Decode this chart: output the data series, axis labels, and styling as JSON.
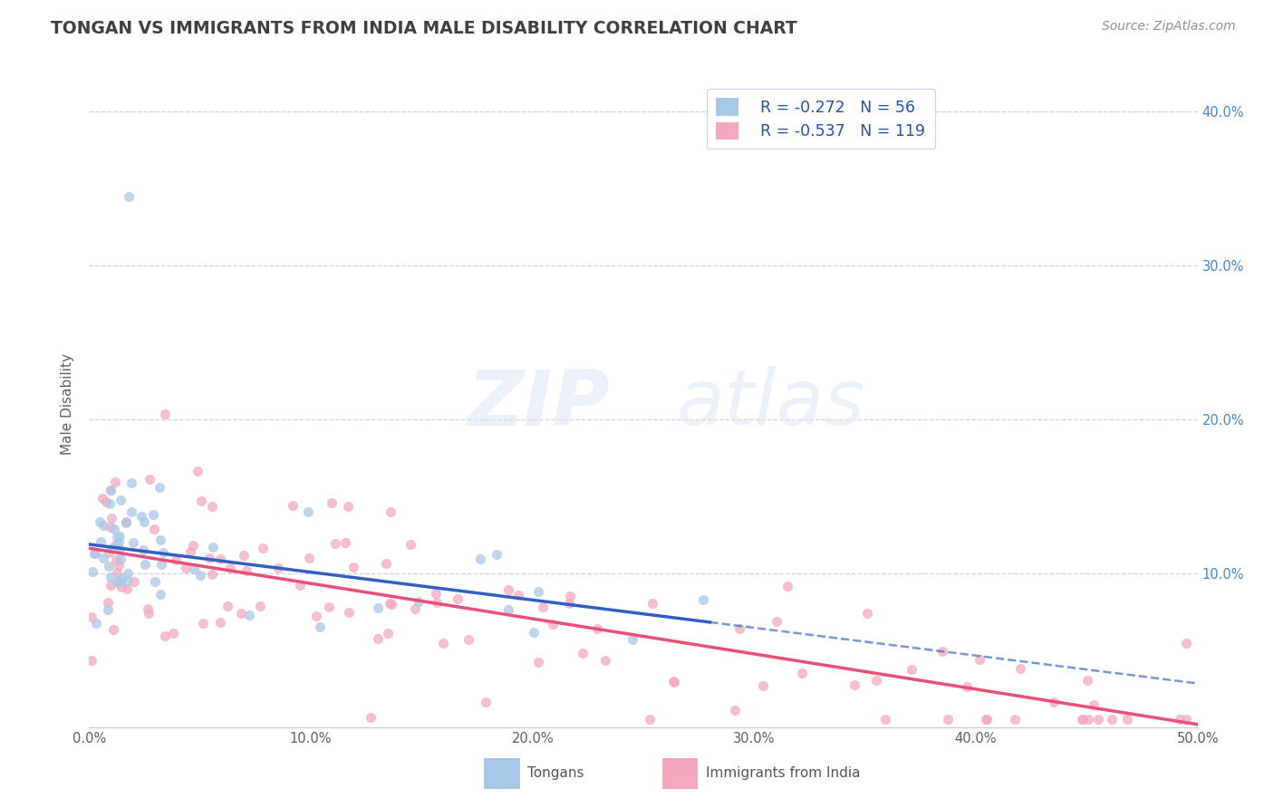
{
  "title": "TONGAN VS IMMIGRANTS FROM INDIA MALE DISABILITY CORRELATION CHART",
  "source": "Source: ZipAtlas.com",
  "ylabel": "Male Disability",
  "xlim": [
    0.0,
    0.5
  ],
  "ylim": [
    0.0,
    0.42
  ],
  "xticks": [
    0.0,
    0.1,
    0.2,
    0.3,
    0.4,
    0.5
  ],
  "yticks": [
    0.0,
    0.1,
    0.2,
    0.3,
    0.4
  ],
  "legend_labels": [
    "Tongans",
    "Immigrants from India"
  ],
  "legend_r": [
    "R = -0.272",
    "R = -0.537"
  ],
  "legend_n": [
    "N = 56",
    "N = 119"
  ],
  "blue_color": "#a8c8e8",
  "pink_color": "#f4a8be",
  "blue_line_color": "#3060c0",
  "pink_line_color": "#e8507a",
  "background_color": "#ffffff",
  "grid_color": "#c8d4e4",
  "title_color": "#404040",
  "source_color": "#909090",
  "watermark_zip": "ZIP",
  "watermark_atlas": "atlas",
  "tongans_seed": 123,
  "india_seed": 456
}
